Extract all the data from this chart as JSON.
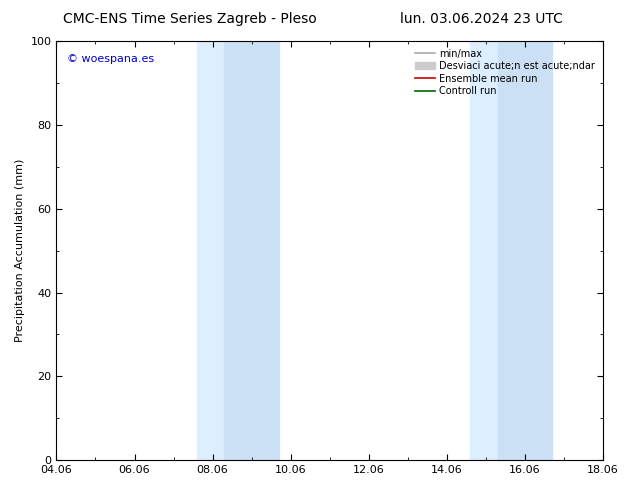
{
  "title_left": "CMC-ENS Time Series Zagreb - Pleso",
  "title_right": "lun. 03.06.2024 23 UTC",
  "ylabel": "Precipitation Accumulation (mm)",
  "ylim": [
    0,
    100
  ],
  "yticks": [
    0,
    20,
    40,
    60,
    80,
    100
  ],
  "xtick_labels": [
    "04.06",
    "06.06",
    "08.06",
    "10.06",
    "12.06",
    "14.06",
    "16.06",
    "18.06"
  ],
  "xtick_positions": [
    0,
    2,
    4,
    6,
    8,
    10,
    12,
    14
  ],
  "xlim": [
    0,
    14
  ],
  "shaded_regions": [
    {
      "x_start": 3.6,
      "x_end": 4.3,
      "color": "#ddeeff"
    },
    {
      "x_start": 4.3,
      "x_end": 5.7,
      "color": "#cce0f5"
    },
    {
      "x_start": 10.6,
      "x_end": 11.3,
      "color": "#ddeeff"
    },
    {
      "x_start": 11.3,
      "x_end": 12.7,
      "color": "#cce0f5"
    }
  ],
  "watermark_text": "© woespana.es",
  "watermark_color": "#0000cc",
  "legend_entries": [
    {
      "label": "min/max",
      "color": "#aaaaaa",
      "linewidth": 1.2,
      "patch": false
    },
    {
      "label": "Desviaci acute;n est acute;ndar",
      "color": "#cccccc",
      "linewidth": 5,
      "patch": true
    },
    {
      "label": "Ensemble mean run",
      "color": "#cc0000",
      "linewidth": 1.2,
      "patch": false
    },
    {
      "label": "Controll run",
      "color": "#006600",
      "linewidth": 1.2,
      "patch": false
    }
  ],
  "background_color": "#ffffff",
  "title_fontsize": 10,
  "axis_label_fontsize": 8,
  "tick_fontsize": 8,
  "legend_fontsize": 7
}
